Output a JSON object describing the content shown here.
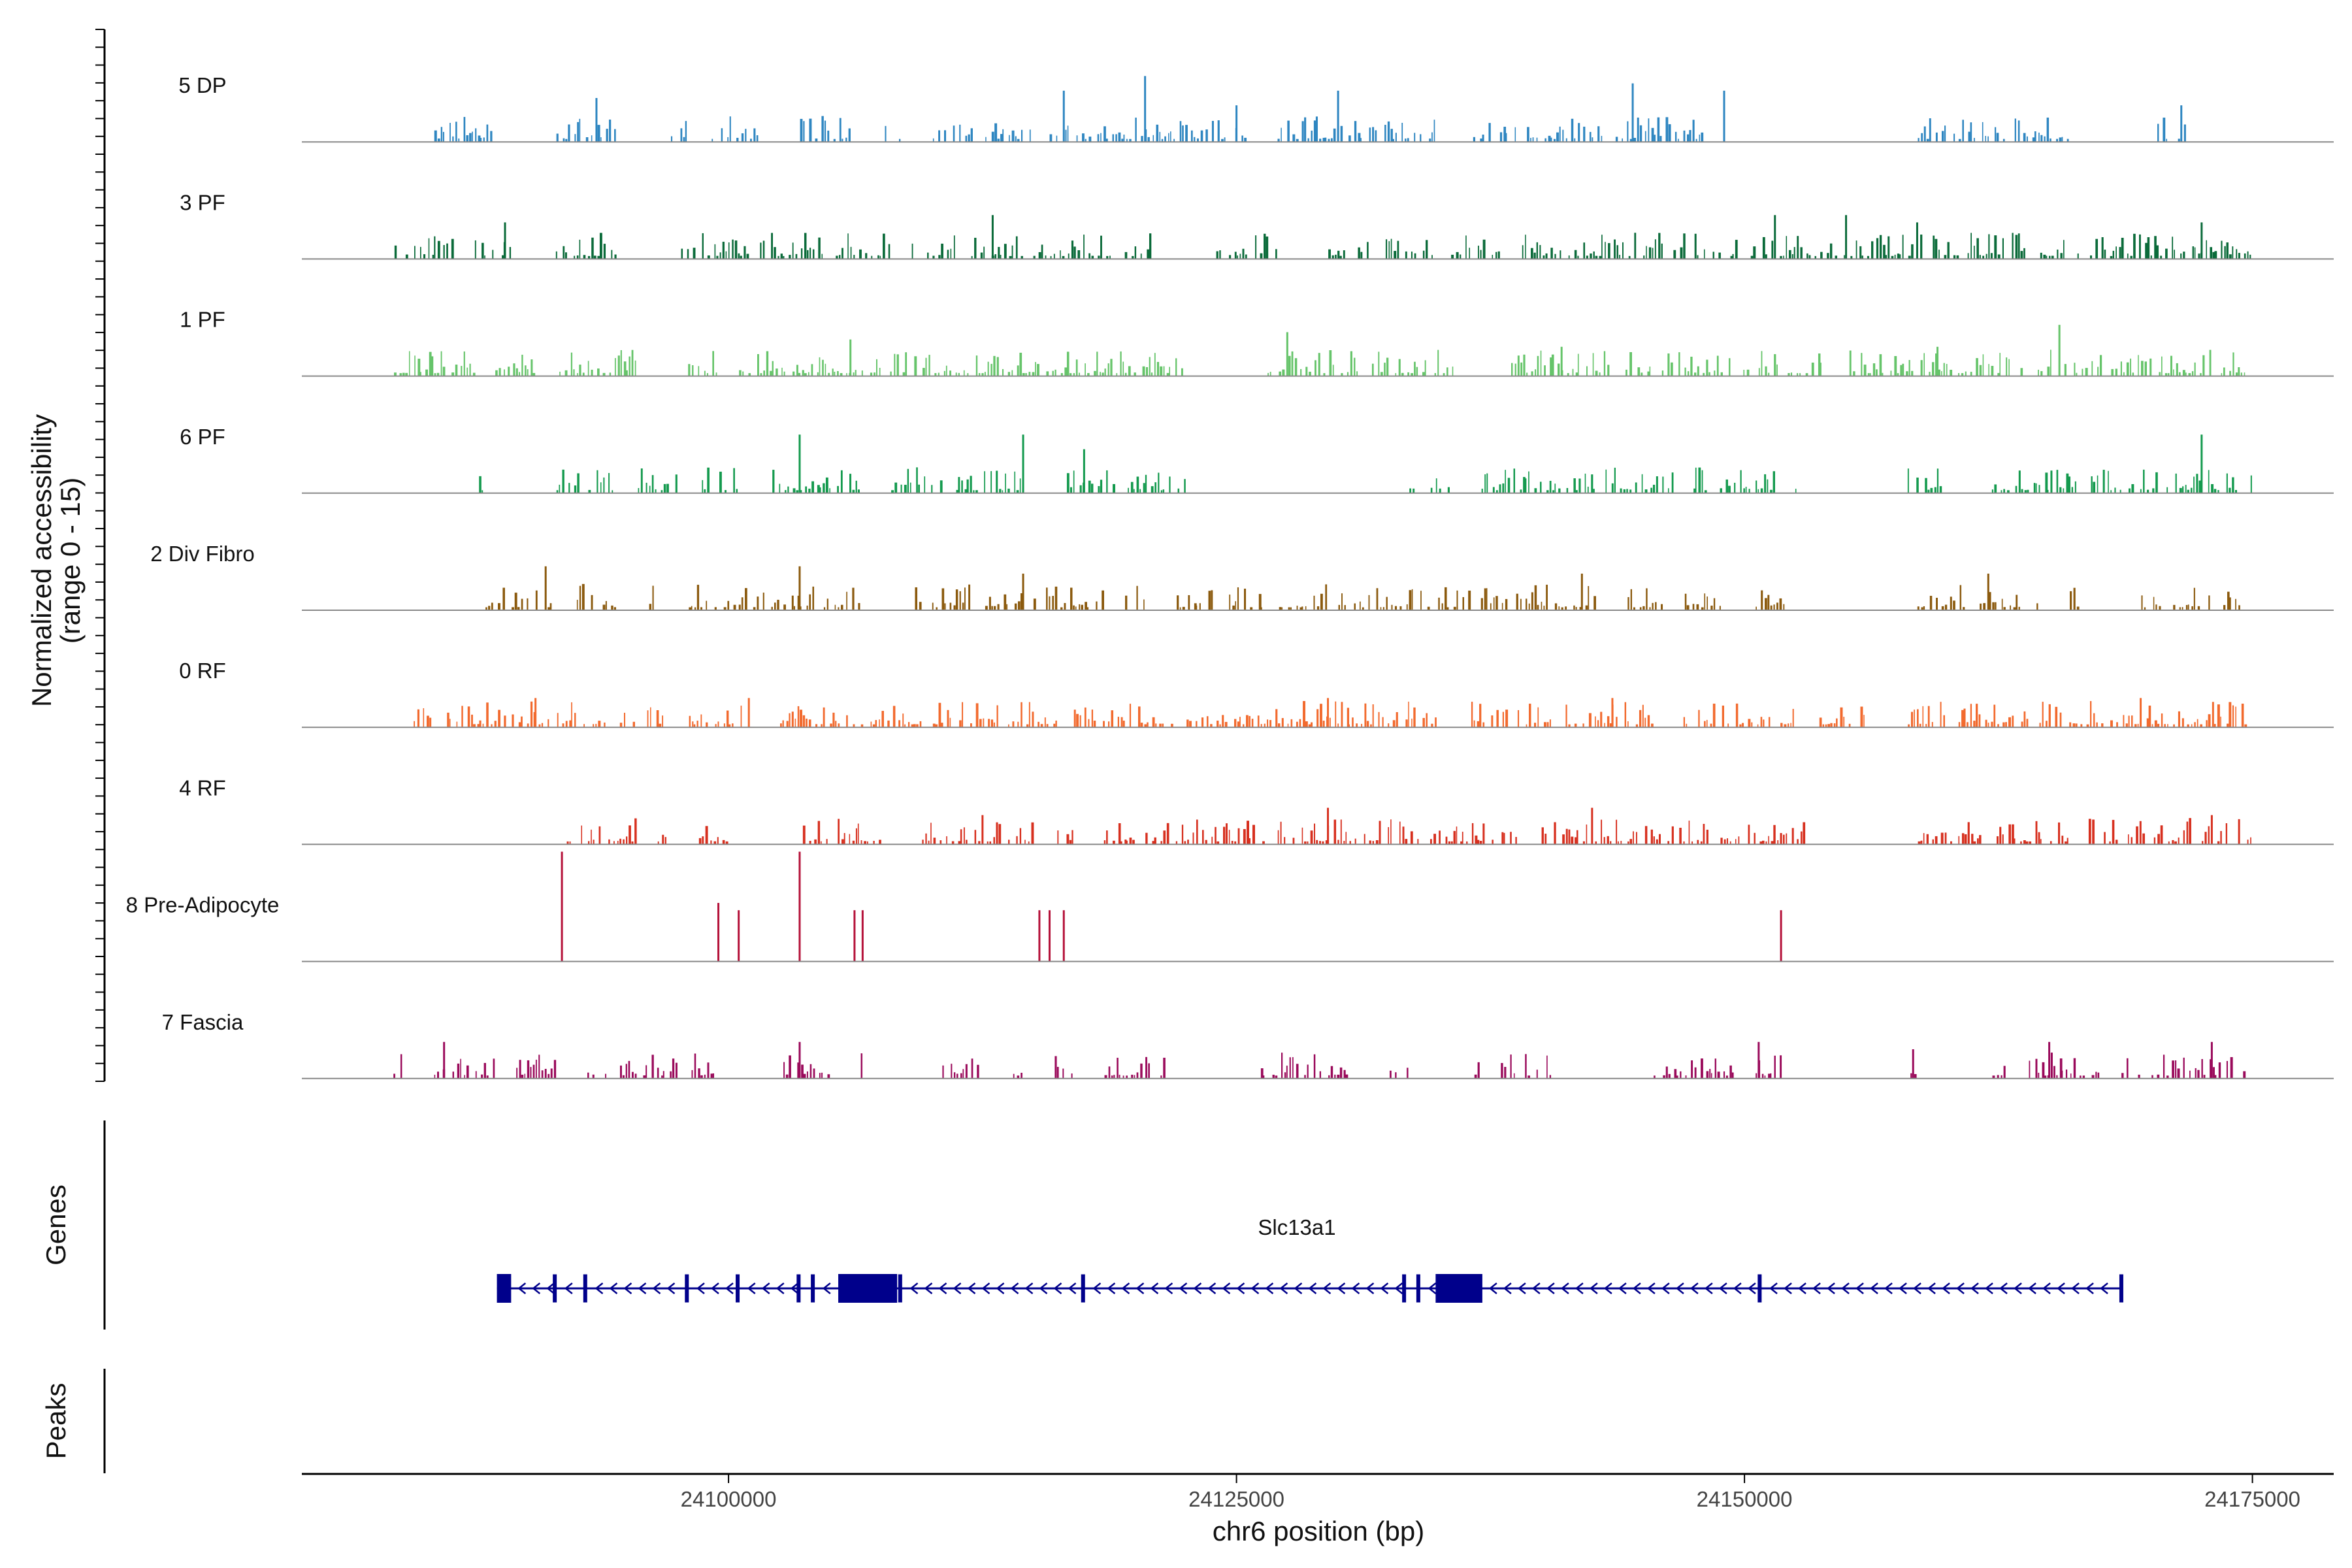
{
  "chart_data": {
    "type": "coverage",
    "chromosome": "chr6",
    "xlim": [
      24079000,
      24179000
    ],
    "xlabel": "chr6 position (bp)",
    "xticks": [
      24100000,
      24125000,
      24150000,
      24175000
    ],
    "xtick_labels": [
      "24100000",
      "24125000",
      "24150000",
      "24175000"
    ],
    "ylabel_line1": "Normalized accessibility",
    "ylabel_line2": "(range 0 - 15)",
    "ylim": [
      0,
      15
    ],
    "tracks": [
      {
        "name": "5 DP",
        "color": "#2E86C1",
        "regions": [
          [
            24085500,
            24088500
          ],
          [
            24091500,
            24094500
          ],
          [
            24097000,
            24098000
          ],
          [
            24099000,
            24101500
          ],
          [
            24103500,
            24106000
          ],
          [
            24107500,
            24108500
          ],
          [
            24110000,
            24125500
          ],
          [
            24127000,
            24135000
          ],
          [
            24136500,
            24148000
          ],
          [
            24158500,
            24166000
          ],
          [
            24170000,
            24172000
          ]
        ],
        "peaks": [
          [
            24093500,
            6
          ],
          [
            24116500,
            7
          ],
          [
            24120500,
            9
          ],
          [
            24125000,
            5
          ],
          [
            24130000,
            7
          ],
          [
            24144500,
            8
          ],
          [
            24149000,
            7
          ],
          [
            24171500,
            5
          ]
        ]
      },
      {
        "name": "3 PF",
        "color": "#0B6B3A",
        "regions": [
          [
            24083500,
            24086500
          ],
          [
            24087500,
            24089500
          ],
          [
            24091500,
            24094500
          ],
          [
            24097500,
            24101000
          ],
          [
            24101500,
            24108000
          ],
          [
            24109000,
            24113500
          ],
          [
            24113500,
            24119000
          ],
          [
            24119500,
            24121000
          ],
          [
            24124000,
            24127000
          ],
          [
            24129500,
            24131500
          ],
          [
            24132000,
            24135000
          ],
          [
            24135500,
            24138000
          ],
          [
            24139000,
            24146000
          ],
          [
            24146500,
            24159500
          ],
          [
            24159500,
            24164000
          ],
          [
            24164500,
            24175000
          ]
        ],
        "peaks": [
          [
            24089000,
            5
          ],
          [
            24113000,
            6
          ],
          [
            24151500,
            6
          ],
          [
            24155000,
            6
          ],
          [
            24158500,
            5
          ],
          [
            24172500,
            5
          ]
        ]
      },
      {
        "name": "1 PF",
        "color": "#66C46A",
        "regions": [
          [
            24083500,
            24087500
          ],
          [
            24088500,
            24090500
          ],
          [
            24091500,
            24095500
          ],
          [
            24098000,
            24099500
          ],
          [
            24100500,
            24106500
          ],
          [
            24106500,
            24118500
          ],
          [
            24118500,
            24122500
          ],
          [
            24126500,
            24131000
          ],
          [
            24131500,
            24136000
          ],
          [
            24138500,
            24143500
          ],
          [
            24144000,
            24154000
          ],
          [
            24155000,
            24165000
          ],
          [
            24165000,
            24175000
          ]
        ],
        "peaks": [
          [
            24106000,
            5
          ],
          [
            24127500,
            6
          ],
          [
            24141000,
            4
          ],
          [
            24159500,
            4
          ],
          [
            24165500,
            7
          ]
        ]
      },
      {
        "name": "6 PF",
        "color": "#149A4E",
        "regions": [
          [
            24087500,
            24088000
          ],
          [
            24091500,
            24094500
          ],
          [
            24095500,
            24097500
          ],
          [
            24098500,
            24100500
          ],
          [
            24102000,
            24106500
          ],
          [
            24108000,
            24110500
          ],
          [
            24111000,
            24115000
          ],
          [
            24116500,
            24119000
          ],
          [
            24119500,
            24122500
          ],
          [
            24133500,
            24135500
          ],
          [
            24137000,
            24140500
          ],
          [
            24140500,
            24146500
          ],
          [
            24147000,
            24151500
          ],
          [
            24152500,
            24153000
          ],
          [
            24158000,
            24160000
          ],
          [
            24162000,
            24166500
          ],
          [
            24167000,
            24172500
          ],
          [
            24172500,
            24175000
          ]
        ],
        "peaks": [
          [
            24103500,
            8
          ],
          [
            24114500,
            8
          ],
          [
            24117500,
            6
          ],
          [
            24172500,
            8
          ]
        ]
      },
      {
        "name": "2 Div Fibro",
        "color": "#8B5A0E",
        "regions": [
          [
            24088000,
            24091500
          ],
          [
            24092500,
            24094500
          ],
          [
            24095500,
            24096500
          ],
          [
            24098000,
            24101500
          ],
          [
            24101500,
            24106500
          ],
          [
            24109000,
            24109500
          ],
          [
            24110000,
            24114500
          ],
          [
            24115000,
            24118500
          ],
          [
            24119500,
            24120500
          ],
          [
            24122000,
            24129500
          ],
          [
            24130000,
            24136500
          ],
          [
            24137000,
            24143000
          ],
          [
            24143500,
            24146000
          ],
          [
            24147000,
            24149000
          ],
          [
            24150500,
            24152000
          ],
          [
            24158500,
            24164500
          ],
          [
            24166000,
            24166500
          ],
          [
            24169500,
            24175000
          ]
        ],
        "peaks": [
          [
            24091000,
            6
          ],
          [
            24103500,
            6
          ],
          [
            24114500,
            5
          ],
          [
            24142000,
            5
          ],
          [
            24162000,
            5
          ]
        ]
      },
      {
        "name": "0 RF",
        "color": "#F26A2E",
        "regions": [
          [
            24084500,
            24090500
          ],
          [
            24090500,
            24094000
          ],
          [
            24094500,
            24097000
          ],
          [
            24098000,
            24101000
          ],
          [
            24102500,
            24107500
          ],
          [
            24107500,
            24109500
          ],
          [
            24110000,
            24122000
          ],
          [
            24122500,
            24128500
          ],
          [
            24128500,
            24135000
          ],
          [
            24136500,
            24140500
          ],
          [
            24141000,
            24145500
          ],
          [
            24146500,
            24152500
          ],
          [
            24153500,
            24154500
          ],
          [
            24154500,
            24156000
          ],
          [
            24158000,
            24164000
          ],
          [
            24164500,
            24169000
          ],
          [
            24169000,
            24175000
          ]
        ],
        "peaks": [
          [
            24090500,
            4
          ],
          [
            24101000,
            4
          ],
          [
            24129500,
            4
          ],
          [
            24143500,
            4
          ],
          [
            24169500,
            4
          ]
        ]
      },
      {
        "name": "4 RF",
        "color": "#D7301F",
        "regions": [
          [
            24092000,
            24095500
          ],
          [
            24096500,
            24097000
          ],
          [
            24098500,
            24100000
          ],
          [
            24103500,
            24107500
          ],
          [
            24109500,
            24115000
          ],
          [
            24116000,
            24117000
          ],
          [
            24118000,
            24120000
          ],
          [
            24120500,
            24126500
          ],
          [
            24127000,
            24134000
          ],
          [
            24134500,
            24139000
          ],
          [
            24140000,
            24153000
          ],
          [
            24158500,
            24166000
          ],
          [
            24166500,
            24172000
          ],
          [
            24172500,
            24175000
          ]
        ],
        "peaks": [
          [
            24112500,
            4
          ],
          [
            24129500,
            5
          ],
          [
            24142500,
            5
          ],
          [
            24173000,
            4
          ]
        ]
      },
      {
        "name": "8 Pre-Adipocyte",
        "color": "#B5123A",
        "regions": [],
        "peaks": [
          [
            24091800,
            15
          ],
          [
            24099500,
            8
          ],
          [
            24100500,
            7
          ],
          [
            24103500,
            15
          ],
          [
            24106200,
            7
          ],
          [
            24106600,
            7
          ],
          [
            24115300,
            7
          ],
          [
            24115800,
            7
          ],
          [
            24116500,
            7
          ],
          [
            24151800,
            7
          ]
        ]
      },
      {
        "name": "7 Fascia",
        "color": "#9A0A5B",
        "regions": [
          [
            24083500,
            24084000
          ],
          [
            24085500,
            24087500
          ],
          [
            24087500,
            24088500
          ],
          [
            24089500,
            24091500
          ],
          [
            24093000,
            24097500
          ],
          [
            24098000,
            24099500
          ],
          [
            24102500,
            24105000
          ],
          [
            24106500,
            24107000
          ],
          [
            24110500,
            24112500
          ],
          [
            24114000,
            24114500
          ],
          [
            24116000,
            24117000
          ],
          [
            24118500,
            24121500
          ],
          [
            24126000,
            24130500
          ],
          [
            24132500,
            24133500
          ],
          [
            24136500,
            24137000
          ],
          [
            24138000,
            24140500
          ],
          [
            24142500,
            24143000
          ],
          [
            24145500,
            24149500
          ],
          [
            24150500,
            24152000
          ],
          [
            24158000,
            24158500
          ],
          [
            24162000,
            24163000
          ],
          [
            24164000,
            24167500
          ],
          [
            24168500,
            24169500
          ],
          [
            24170000,
            24174000
          ],
          [
            24174500,
            24175000
          ]
        ],
        "peaks": [
          [
            24086000,
            5
          ],
          [
            24103500,
            5
          ],
          [
            24150700,
            5
          ],
          [
            24158300,
            4
          ],
          [
            24165000,
            5
          ],
          [
            24173000,
            5
          ]
        ]
      }
    ],
    "genes_label": "Genes",
    "peaks_label": "Peaks",
    "gene": {
      "name": "Slc13a1",
      "strand": "-",
      "start": 24088600,
      "end": 24168600,
      "introns_boundaries": [
        24088600,
        24091500,
        24093000,
        24098000,
        24100500,
        24103500,
        24104200,
        24105500,
        24108500,
        24117500,
        24133300,
        24134000,
        24135200,
        24137500,
        24150800,
        24168600
      ],
      "exons": [
        [
          24088600,
          24089300
        ],
        [
          24091400,
          24091600
        ],
        [
          24092900,
          24093100
        ],
        [
          24097900,
          24098100
        ],
        [
          24100400,
          24100600
        ],
        [
          24103400,
          24103600
        ],
        [
          24104100,
          24104300
        ],
        [
          24105400,
          24108300
        ],
        [
          24108400,
          24108600
        ],
        [
          24117400,
          24117600
        ],
        [
          24133200,
          24133400
        ],
        [
          24133900,
          24134100
        ],
        [
          24134800,
          24137100
        ],
        [
          24150700,
          24150900
        ],
        [
          24168500,
          24168700
        ]
      ]
    }
  }
}
